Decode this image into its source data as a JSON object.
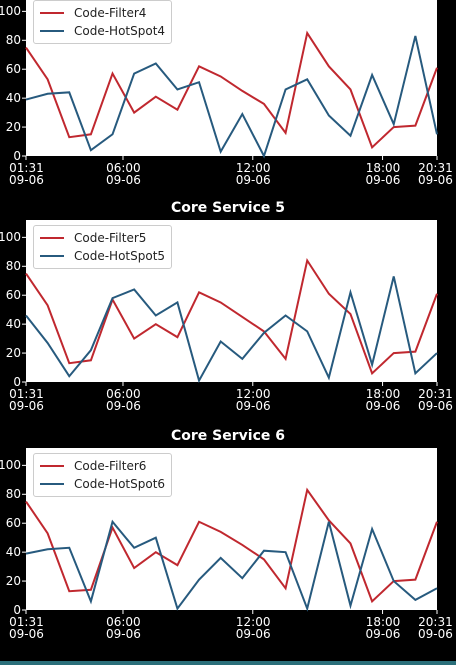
{
  "chart_data": [
    {
      "type": "line",
      "legend": "upper left",
      "ylim": [
        0,
        112
      ],
      "yticks": [
        0,
        20,
        40,
        60,
        80,
        100
      ],
      "xlim": [
        "09-06 01:31",
        "09-06 20:31"
      ],
      "xticks": [
        {
          "value": "09-06 01:31",
          "label": "01:31\n09-06"
        },
        {
          "value": "09-06 06:00",
          "label": "06:00\n09-06"
        },
        {
          "value": "09-06 12:00",
          "label": "12:00\n09-06"
        },
        {
          "value": "09-06 18:00",
          "label": "18:00\n09-06"
        },
        {
          "value": "09-06 20:31",
          "label": "20:31\n09-06"
        }
      ],
      "x": [
        "09-06 01:31",
        "09-06 02:31",
        "09-06 03:31",
        "09-06 04:31",
        "09-06 05:31",
        "09-06 06:31",
        "09-06 07:31",
        "09-06 08:31",
        "09-06 09:31",
        "09-06 10:31",
        "09-06 11:31",
        "09-06 12:31",
        "09-06 13:31",
        "09-06 14:31",
        "09-06 15:31",
        "09-06 16:31",
        "09-06 17:31",
        "09-06 18:31",
        "09-06 19:31",
        "09-06 20:31"
      ],
      "series": [
        {
          "name": "Code-Filter4",
          "color": "#c0282f",
          "values": [
            75,
            53,
            13,
            15,
            57,
            30,
            41,
            32,
            62,
            55,
            45,
            36,
            16,
            85,
            62,
            46,
            6,
            20,
            21,
            61
          ]
        },
        {
          "name": "Code-HotSpot4",
          "color": "#275a7e",
          "values": [
            39,
            43,
            44,
            4,
            15,
            57,
            64,
            46,
            51,
            3,
            29,
            0,
            46,
            53,
            28,
            14,
            56,
            22,
            83,
            15
          ]
        }
      ]
    },
    {
      "type": "line",
      "title": "Core Service 5",
      "legend": "upper left",
      "ylim": [
        0,
        112
      ],
      "yticks": [
        0,
        20,
        40,
        60,
        80,
        100
      ],
      "xlim": [
        "09-06 01:31",
        "09-06 20:31"
      ],
      "xticks": [
        {
          "value": "09-06 01:31",
          "label": "01:31\n09-06"
        },
        {
          "value": "09-06 06:00",
          "label": "06:00\n09-06"
        },
        {
          "value": "09-06 12:00",
          "label": "12:00\n09-06"
        },
        {
          "value": "09-06 18:00",
          "label": "18:00\n09-06"
        },
        {
          "value": "09-06 20:31",
          "label": "20:31\n09-06"
        }
      ],
      "x": [
        "09-06 01:31",
        "09-06 02:31",
        "09-06 03:31",
        "09-06 04:31",
        "09-06 05:31",
        "09-06 06:31",
        "09-06 07:31",
        "09-06 08:31",
        "09-06 09:31",
        "09-06 10:31",
        "09-06 11:31",
        "09-06 12:31",
        "09-06 13:31",
        "09-06 14:31",
        "09-06 15:31",
        "09-06 16:31",
        "09-06 17:31",
        "09-06 18:31",
        "09-06 19:31",
        "09-06 20:31"
      ],
      "series": [
        {
          "name": "Code-Filter5",
          "color": "#c0282f",
          "values": [
            75,
            53,
            13,
            15,
            57,
            30,
            40,
            31,
            62,
            55,
            45,
            35,
            16,
            84,
            61,
            47,
            6,
            20,
            21,
            61
          ]
        },
        {
          "name": "Code-HotSpot5",
          "color": "#275a7e",
          "values": [
            46,
            27,
            4,
            22,
            58,
            64,
            46,
            55,
            1,
            28,
            16,
            34,
            46,
            35,
            3,
            62,
            12,
            73,
            6,
            20
          ]
        }
      ]
    },
    {
      "type": "line",
      "title": "Core Service 6",
      "legend": "upper left",
      "ylim": [
        0,
        112
      ],
      "yticks": [
        0,
        20,
        40,
        60,
        80,
        100
      ],
      "xlim": [
        "09-06 01:31",
        "09-06 20:31"
      ],
      "xticks": [
        {
          "value": "09-06 01:31",
          "label": "01:31\n09-06"
        },
        {
          "value": "09-06 06:00",
          "label": "06:00\n09-06"
        },
        {
          "value": "09-06 12:00",
          "label": "12:00\n09-06"
        },
        {
          "value": "09-06 18:00",
          "label": "18:00\n09-06"
        },
        {
          "value": "09-06 20:31",
          "label": "20:31\n09-06"
        }
      ],
      "x": [
        "09-06 01:31",
        "09-06 02:31",
        "09-06 03:31",
        "09-06 04:31",
        "09-06 05:31",
        "09-06 06:31",
        "09-06 07:31",
        "09-06 08:31",
        "09-06 09:31",
        "09-06 10:31",
        "09-06 11:31",
        "09-06 12:31",
        "09-06 13:31",
        "09-06 14:31",
        "09-06 15:31",
        "09-06 16:31",
        "09-06 17:31",
        "09-06 18:31",
        "09-06 19:31",
        "09-06 20:31"
      ],
      "series": [
        {
          "name": "Code-Filter6",
          "color": "#c0282f",
          "values": [
            75,
            53,
            13,
            14,
            57,
            29,
            40,
            31,
            61,
            54,
            45,
            35,
            15,
            83,
            62,
            46,
            6,
            20,
            21,
            61
          ]
        },
        {
          "name": "Code-HotSpot6",
          "color": "#275a7e",
          "values": [
            39,
            42,
            43,
            6,
            61,
            43,
            50,
            1,
            21,
            36,
            22,
            41,
            40,
            1,
            61,
            3,
            56,
            20,
            7,
            15
          ]
        }
      ]
    }
  ]
}
